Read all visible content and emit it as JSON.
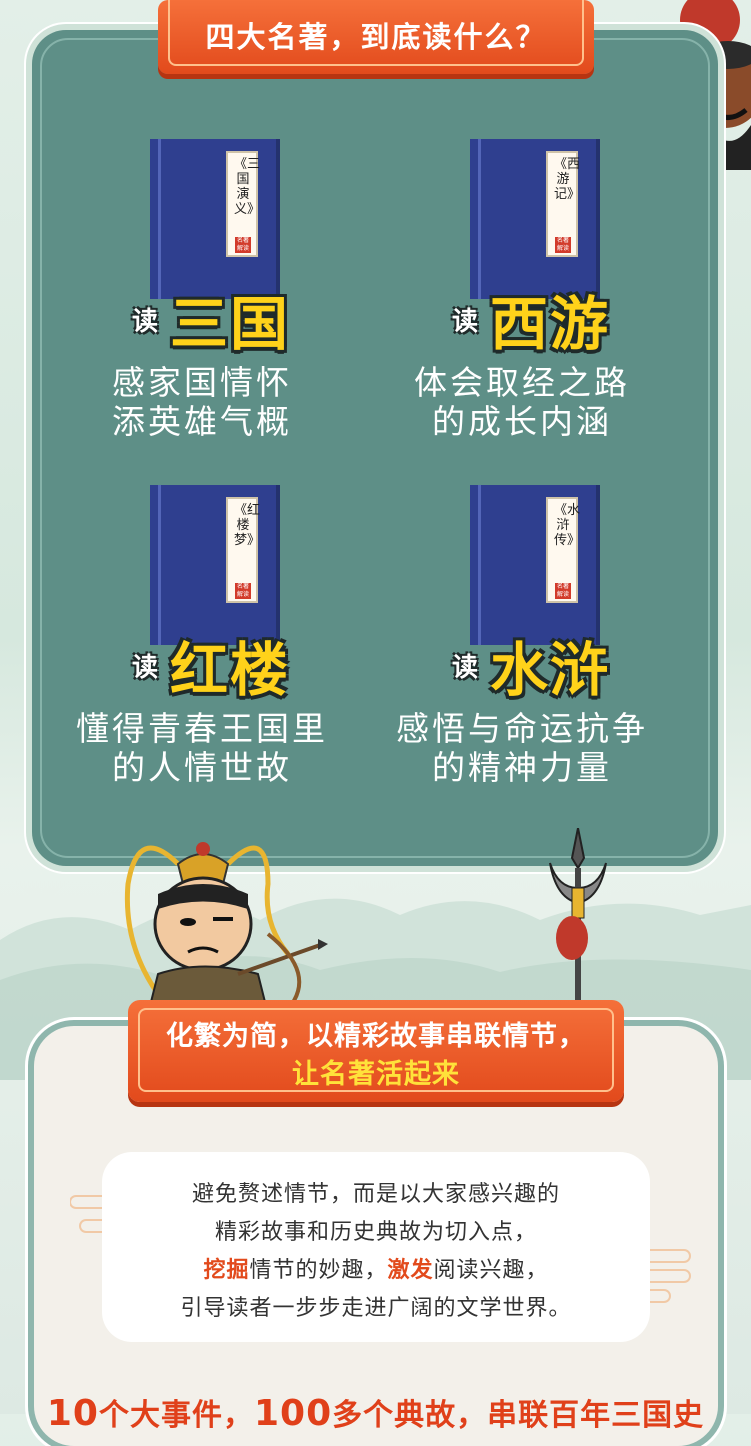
{
  "header": {
    "title": "四大名著，到底读什么？"
  },
  "books": [
    {
      "cover_title": "《三国演义》",
      "seal": "名著解读",
      "read_prefix": "读",
      "read_name": "三国",
      "desc_line1": "感家国情怀",
      "desc_line2": "添英雄气概"
    },
    {
      "cover_title": "《西游记》",
      "seal": "名著解读",
      "read_prefix": "读",
      "read_name": "西游",
      "desc_line1": "体会取经之路",
      "desc_line2": "的成长内涵"
    },
    {
      "cover_title": "《红楼梦》",
      "seal": "名著解读",
      "read_prefix": "读",
      "read_name": "红楼",
      "desc_line1": "懂得青春王国里",
      "desc_line2": "的人情世故"
    },
    {
      "cover_title": "《水浒传》",
      "seal": "名著解读",
      "read_prefix": "读",
      "read_name": "水浒",
      "desc_line1": "感悟与命运抗争",
      "desc_line2": "的精神力量"
    }
  ],
  "section2": {
    "banner_line1": "化繁为简，以精彩故事串联情节，",
    "banner_line2": "让名著活起来",
    "para_line1": "避免赘述情节，而是以大家感兴趣的",
    "para_line2": "精彩故事和历史典故为切入点，",
    "para_line3_hl1": "挖掘",
    "para_line3_mid": "情节的妙趣，",
    "para_line3_hl2": "激发",
    "para_line3_end": "阅读兴趣，",
    "para_line4": "引导读者一步步走进广阔的文学世界。",
    "bottom_n1": "10",
    "bottom_t1": "个大事件，",
    "bottom_n2": "100",
    "bottom_t2": "多个典故，串联百年三国史"
  },
  "colors": {
    "panel": "#5e8f87",
    "banner": "#e24a1c",
    "highlight_yellow": "#ffd21a",
    "book_cover": "#2f3f8f"
  }
}
